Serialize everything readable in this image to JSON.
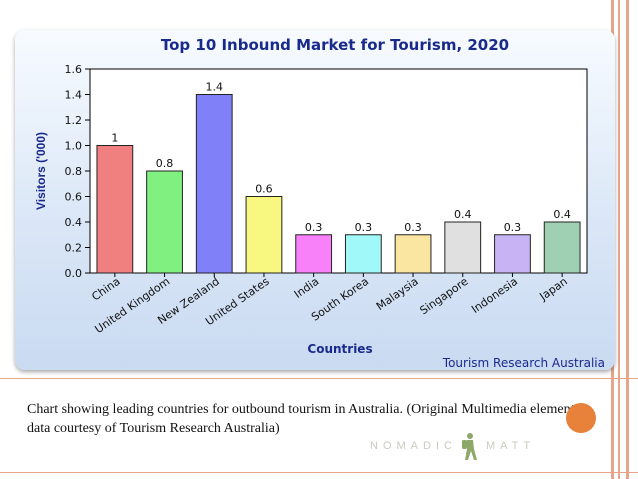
{
  "chart_data": {
    "type": "bar",
    "title": "Top 10 Inbound Market for Tourism, 2020",
    "xlabel": "Countries",
    "ylabel": "Visitors ('000)",
    "source": "Tourism Research Australia",
    "ylim": [
      0,
      1.6
    ],
    "yticks": [
      "0.0",
      "0.2",
      "0.4",
      "0.6",
      "0.8",
      "1.0",
      "1.2",
      "1.4",
      "1.6"
    ],
    "grid": false,
    "categories": [
      "China",
      "United Kingdom",
      "New Zealand",
      "United States",
      "India",
      "South Korea",
      "Malaysia",
      "Singapore",
      "Indonesia",
      "Japan"
    ],
    "values": [
      1,
      0.8,
      1.4,
      0.6,
      0.3,
      0.3,
      0.3,
      0.4,
      0.3,
      0.4
    ],
    "value_labels": [
      "1",
      "0.8",
      "1.4",
      "0.6",
      "0.3",
      "0.3",
      "0.3",
      "0.4",
      "0.3",
      "0.4"
    ],
    "colors": [
      "#f08080",
      "#80f080",
      "#8080f8",
      "#f8f880",
      "#f880f8",
      "#a0f8f8",
      "#fae6a0",
      "#e0e0e0",
      "#c8b4f4",
      "#a0d0b4"
    ]
  },
  "caption": "Chart showing leading countries for outbound tourism in Australia. (Original Multimedia element – data courtesy of Tourism Research Australia)",
  "watermark": {
    "left": "NOMADIC",
    "right": "MATT"
  },
  "theme": {
    "stripe_color": "#e8a58a",
    "badge_color": "#e8823a"
  }
}
